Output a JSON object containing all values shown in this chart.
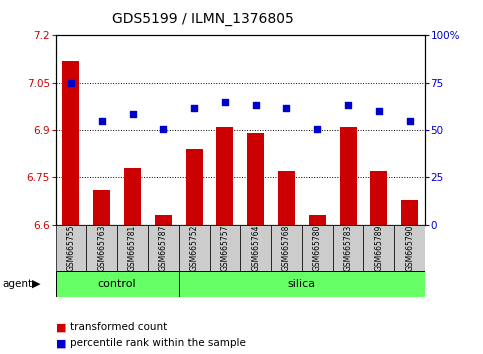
{
  "title": "GDS5199 / ILMN_1376805",
  "samples": [
    "GSM665755",
    "GSM665763",
    "GSM665781",
    "GSM665787",
    "GSM665752",
    "GSM665757",
    "GSM665764",
    "GSM665768",
    "GSM665780",
    "GSM665783",
    "GSM665789",
    "GSM665790"
  ],
  "bar_values": [
    7.12,
    6.71,
    6.78,
    6.63,
    6.84,
    6.91,
    6.89,
    6.77,
    6.63,
    6.91,
    6.77,
    6.68
  ],
  "dot_values_left": [
    7.05,
    6.93,
    6.95,
    6.905,
    6.97,
    6.99,
    6.98,
    6.97,
    6.905,
    6.98,
    6.96,
    6.93
  ],
  "bar_color": "#cc0000",
  "dot_color": "#0000cc",
  "ylim_left": [
    6.6,
    7.2
  ],
  "ylim_right": [
    0,
    100
  ],
  "yticks_left": [
    6.6,
    6.75,
    6.9,
    7.05,
    7.2
  ],
  "yticks_right": [
    0,
    25,
    50,
    75,
    100
  ],
  "ytick_labels_left": [
    "6.6",
    "6.75",
    "6.9",
    "7.05",
    "7.2"
  ],
  "ytick_labels_right": [
    "0",
    "25",
    "50",
    "75",
    "100%"
  ],
  "grid_values": [
    6.75,
    6.9,
    7.05
  ],
  "legend_bar": "transformed count",
  "legend_dot": "percentile rank within the sample",
  "bar_width": 0.55,
  "control_count": 4,
  "silica_count": 8,
  "group_color": "#66ff66",
  "sample_box_color": "#cccccc",
  "title_fontsize": 10,
  "tick_fontsize": 7.5,
  "sample_fontsize": 5.5,
  "group_fontsize": 8,
  "legend_fontsize": 7.5
}
